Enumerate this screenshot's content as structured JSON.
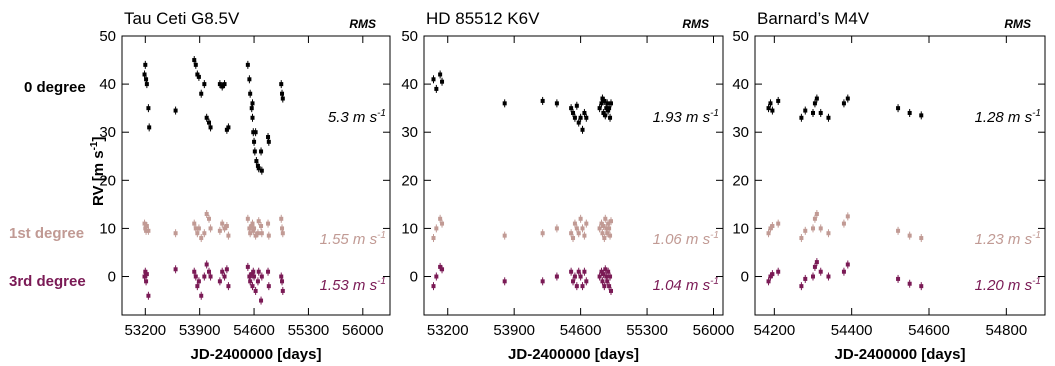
{
  "row_labels": [
    {
      "text": "0 degree",
      "color": "#000000"
    },
    {
      "text": "1st degree",
      "color": "#c19a94"
    },
    {
      "text": "3rd degree",
      "color": "#7a1a55"
    }
  ],
  "ylabel": "RV [m s",
  "ylabel_sup": "-1",
  "ylabel_end": "]",
  "rms_header": "RMS",
  "chart_data": [
    {
      "type": "scatter",
      "title": "Tau Ceti   G8.5V",
      "xlabel": "JD-2400000 [days]",
      "ylabel": "RV [m s-1]",
      "xlim": [
        52900,
        56350
      ],
      "ylim": [
        -8,
        50
      ],
      "xticks": [
        53200,
        53900,
        54600,
        55300,
        56000
      ],
      "yticks": [
        0,
        10,
        20,
        30,
        40,
        50
      ],
      "rms": [
        "5.3 m s",
        "1.55 m s",
        "1.53 m s"
      ],
      "series": [
        {
          "label": "0 degree",
          "color": "#000000",
          "points": [
            [
              53190,
              42
            ],
            [
              53200,
              44
            ],
            [
              53210,
              41
            ],
            [
              53220,
              40
            ],
            [
              53240,
              35
            ],
            [
              53250,
              31
            ],
            [
              53590,
              34.5
            ],
            [
              53830,
              45
            ],
            [
              53850,
              44
            ],
            [
              53870,
              42
            ],
            [
              53890,
              41.5
            ],
            [
              53920,
              38
            ],
            [
              53960,
              40
            ],
            [
              53990,
              33
            ],
            [
              54020,
              32
            ],
            [
              54040,
              31
            ],
            [
              54160,
              40
            ],
            [
              54190,
              39.5
            ],
            [
              54220,
              40
            ],
            [
              54250,
              30.5
            ],
            [
              54270,
              31
            ],
            [
              54520,
              44
            ],
            [
              54540,
              41
            ],
            [
              54550,
              38
            ],
            [
              54570,
              35
            ],
            [
              54580,
              33
            ],
            [
              54590,
              30
            ],
            [
              54600,
              28
            ],
            [
              54610,
              26
            ],
            [
              54630,
              24
            ],
            [
              54650,
              23
            ],
            [
              54660,
              22.5
            ],
            [
              54700,
              22
            ],
            [
              54690,
              26
            ],
            [
              54580,
              36
            ],
            [
              54620,
              30
            ],
            [
              54780,
              29
            ],
            [
              54790,
              28
            ],
            [
              54950,
              40
            ],
            [
              54960,
              38
            ],
            [
              54970,
              37
            ]
          ]
        },
        {
          "label": "1st degree",
          "color": "#c19a94",
          "points": [
            [
              53190,
              11
            ],
            [
              53200,
              10
            ],
            [
              53210,
              9.5
            ],
            [
              53220,
              10.5
            ],
            [
              53240,
              9.5
            ],
            [
              53590,
              9
            ],
            [
              53830,
              11
            ],
            [
              53850,
              10
            ],
            [
              53870,
              9
            ],
            [
              53890,
              10
            ],
            [
              53920,
              8
            ],
            [
              53960,
              9
            ],
            [
              53990,
              13
            ],
            [
              54020,
              12
            ],
            [
              54040,
              10
            ],
            [
              54160,
              9.5
            ],
            [
              54190,
              11
            ],
            [
              54220,
              10
            ],
            [
              54250,
              10.5
            ],
            [
              54270,
              8.5
            ],
            [
              54520,
              12
            ],
            [
              54540,
              10
            ],
            [
              54550,
              9
            ],
            [
              54570,
              10.5
            ],
            [
              54580,
              11
            ],
            [
              54590,
              9.5
            ],
            [
              54600,
              10
            ],
            [
              54620,
              8.5
            ],
            [
              54650,
              9
            ],
            [
              54660,
              11.5
            ],
            [
              54690,
              10.5
            ],
            [
              54700,
              9
            ],
            [
              54780,
              11
            ],
            [
              54790,
              8.5
            ],
            [
              54950,
              12
            ],
            [
              54960,
              10
            ],
            [
              54970,
              9
            ]
          ]
        },
        {
          "label": "3rd degree",
          "color": "#7a1a55",
          "points": [
            [
              53190,
              0
            ],
            [
              53200,
              1
            ],
            [
              53210,
              -1
            ],
            [
              53220,
              0.5
            ],
            [
              53240,
              -4
            ],
            [
              53590,
              1.5
            ],
            [
              53830,
              1
            ],
            [
              53850,
              0
            ],
            [
              53870,
              -2
            ],
            [
              53890,
              -1
            ],
            [
              53920,
              -4
            ],
            [
              53960,
              0
            ],
            [
              53990,
              2.5
            ],
            [
              54020,
              1
            ],
            [
              54040,
              0
            ],
            [
              54160,
              -1
            ],
            [
              54190,
              1
            ],
            [
              54220,
              0
            ],
            [
              54250,
              1.5
            ],
            [
              54270,
              -2
            ],
            [
              54520,
              2
            ],
            [
              54540,
              0
            ],
            [
              54550,
              -1
            ],
            [
              54570,
              0.5
            ],
            [
              54580,
              -2
            ],
            [
              54590,
              1
            ],
            [
              54600,
              0
            ],
            [
              54620,
              -3
            ],
            [
              54650,
              -1
            ],
            [
              54660,
              1
            ],
            [
              54690,
              -5
            ],
            [
              54700,
              0
            ],
            [
              54780,
              1
            ],
            [
              54790,
              -2
            ],
            [
              54950,
              0
            ],
            [
              54960,
              -1
            ],
            [
              54970,
              -3
            ]
          ]
        }
      ]
    },
    {
      "type": "scatter",
      "title": "HD 85512   K6V",
      "xlabel": "JD-2400000 [days]",
      "ylabel": "RV [m s-1]",
      "xlim": [
        52950,
        56100
      ],
      "ylim": [
        -8,
        50
      ],
      "xticks": [
        53200,
        53900,
        54600,
        55300,
        56000
      ],
      "yticks": [
        0,
        10,
        20,
        30,
        40,
        50
      ],
      "rms": [
        "1.93 m s",
        "1.06 m s",
        "1.04 m s"
      ],
      "series": [
        {
          "label": "0 degree",
          "color": "#000000",
          "points": [
            [
              53050,
              41
            ],
            [
              53080,
              39
            ],
            [
              53120,
              42
            ],
            [
              53140,
              40.5
            ],
            [
              53800,
              36
            ],
            [
              54200,
              36.5
            ],
            [
              54350,
              36
            ],
            [
              54500,
              35
            ],
            [
              54520,
              34
            ],
            [
              54540,
              33
            ],
            [
              54560,
              35.5
            ],
            [
              54580,
              32
            ],
            [
              54600,
              33
            ],
            [
              54620,
              30.5
            ],
            [
              54640,
              34
            ],
            [
              54660,
              33
            ],
            [
              54800,
              35
            ],
            [
              54820,
              36
            ],
            [
              54830,
              37
            ],
            [
              54840,
              34
            ],
            [
              54850,
              36.5
            ],
            [
              54860,
              33.5
            ],
            [
              54870,
              35
            ],
            [
              54880,
              36
            ],
            [
              54890,
              34.5
            ],
            [
              54900,
              35
            ],
            [
              54910,
              33
            ],
            [
              54920,
              36
            ]
          ]
        },
        {
          "label": "1st degree",
          "color": "#c19a94",
          "points": [
            [
              53050,
              8
            ],
            [
              53080,
              10
            ],
            [
              53120,
              12
            ],
            [
              53140,
              11
            ],
            [
              53800,
              8.5
            ],
            [
              54200,
              9
            ],
            [
              54350,
              10
            ],
            [
              54500,
              9
            ],
            [
              54520,
              8
            ],
            [
              54540,
              11
            ],
            [
              54560,
              10
            ],
            [
              54580,
              9
            ],
            [
              54600,
              12
            ],
            [
              54620,
              10
            ],
            [
              54640,
              8.5
            ],
            [
              54660,
              11
            ],
            [
              54800,
              10
            ],
            [
              54820,
              11
            ],
            [
              54830,
              9
            ],
            [
              54840,
              10.5
            ],
            [
              54850,
              8
            ],
            [
              54860,
              12
            ],
            [
              54870,
              10
            ],
            [
              54880,
              9
            ],
            [
              54890,
              11
            ],
            [
              54900,
              10
            ],
            [
              54910,
              8.5
            ],
            [
              54920,
              11.5
            ]
          ]
        },
        {
          "label": "3rd degree",
          "color": "#7a1a55",
          "points": [
            [
              53050,
              -2
            ],
            [
              53080,
              0
            ],
            [
              53120,
              2
            ],
            [
              53140,
              1.5
            ],
            [
              53800,
              -1
            ],
            [
              54200,
              -1
            ],
            [
              54350,
              0
            ],
            [
              54500,
              1
            ],
            [
              54520,
              -1
            ],
            [
              54540,
              0
            ],
            [
              54560,
              -2
            ],
            [
              54580,
              1
            ],
            [
              54600,
              0
            ],
            [
              54620,
              -2
            ],
            [
              54640,
              1
            ],
            [
              54660,
              -1
            ],
            [
              54800,
              0
            ],
            [
              54820,
              1
            ],
            [
              54830,
              -1
            ],
            [
              54840,
              0.5
            ],
            [
              54850,
              -2
            ],
            [
              54860,
              1.5
            ],
            [
              54870,
              0
            ],
            [
              54880,
              -1
            ],
            [
              54890,
              1
            ],
            [
              54900,
              -2
            ],
            [
              54910,
              0
            ],
            [
              54920,
              -3
            ]
          ]
        }
      ]
    },
    {
      "type": "scatter",
      "title": "Barnard’s  M4V",
      "xlabel": "JD-2400000 [days]",
      "ylabel": "RV [m s-1]",
      "xlim": [
        54150,
        54900
      ],
      "ylim": [
        -8,
        50
      ],
      "xticks": [
        54200,
        54400,
        54600,
        54800
      ],
      "yticks": [
        0,
        10,
        20,
        30,
        40,
        50
      ],
      "rms": [
        "1.28 m s",
        "1.23 m s",
        "1.20 m s"
      ],
      "series": [
        {
          "label": "0 degree",
          "color": "#000000",
          "points": [
            [
              54185,
              35
            ],
            [
              54190,
              36
            ],
            [
              54195,
              34.5
            ],
            [
              54210,
              36.5
            ],
            [
              54270,
              33
            ],
            [
              54280,
              34.5
            ],
            [
              54300,
              34
            ],
            [
              54305,
              36
            ],
            [
              54310,
              37
            ],
            [
              54320,
              34
            ],
            [
              54340,
              33
            ],
            [
              54380,
              36
            ],
            [
              54390,
              37
            ],
            [
              54520,
              35
            ],
            [
              54550,
              34
            ],
            [
              54580,
              33.5
            ]
          ]
        },
        {
          "label": "1st degree",
          "color": "#c19a94",
          "points": [
            [
              54185,
              9
            ],
            [
              54190,
              10
            ],
            [
              54195,
              10.5
            ],
            [
              54210,
              11
            ],
            [
              54270,
              8
            ],
            [
              54280,
              9.5
            ],
            [
              54300,
              10
            ],
            [
              54305,
              12
            ],
            [
              54310,
              13
            ],
            [
              54320,
              10
            ],
            [
              54340,
              9
            ],
            [
              54380,
              11
            ],
            [
              54390,
              12.5
            ],
            [
              54520,
              9.5
            ],
            [
              54550,
              8.5
            ],
            [
              54580,
              8
            ]
          ]
        },
        {
          "label": "3rd degree",
          "color": "#7a1a55",
          "points": [
            [
              54185,
              -1
            ],
            [
              54190,
              0
            ],
            [
              54195,
              0.5
            ],
            [
              54210,
              1
            ],
            [
              54270,
              -2
            ],
            [
              54280,
              -0.5
            ],
            [
              54300,
              0
            ],
            [
              54305,
              2
            ],
            [
              54310,
              3
            ],
            [
              54320,
              1
            ],
            [
              54340,
              0
            ],
            [
              54380,
              1
            ],
            [
              54390,
              2.5
            ],
            [
              54520,
              -0.5
            ],
            [
              54550,
              -1.5
            ],
            [
              54580,
              -2
            ]
          ]
        }
      ]
    }
  ]
}
